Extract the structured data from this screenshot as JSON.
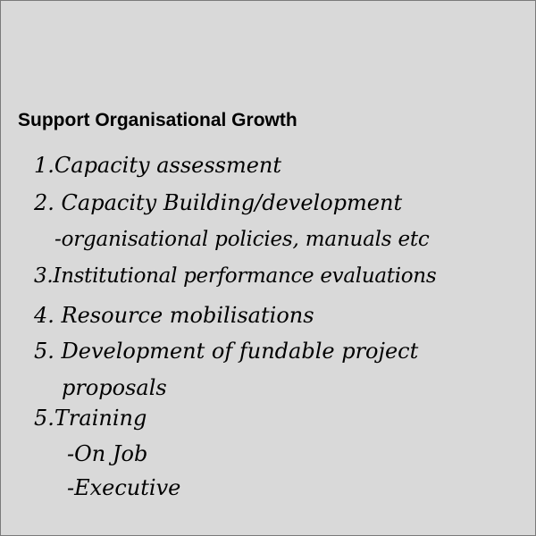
{
  "heading": "Support Organisational Growth",
  "lines": [
    "1.Capacity assessment",
    "2. Capacity Building/development",
    "-organisational policies, manuals etc",
    "3.Institutional performance evaluations",
    "4. Resource mobilisations",
    "5. Development of fundable project",
    "proposals",
    "5.Training",
    "-On Job",
    "-Executive"
  ]
}
